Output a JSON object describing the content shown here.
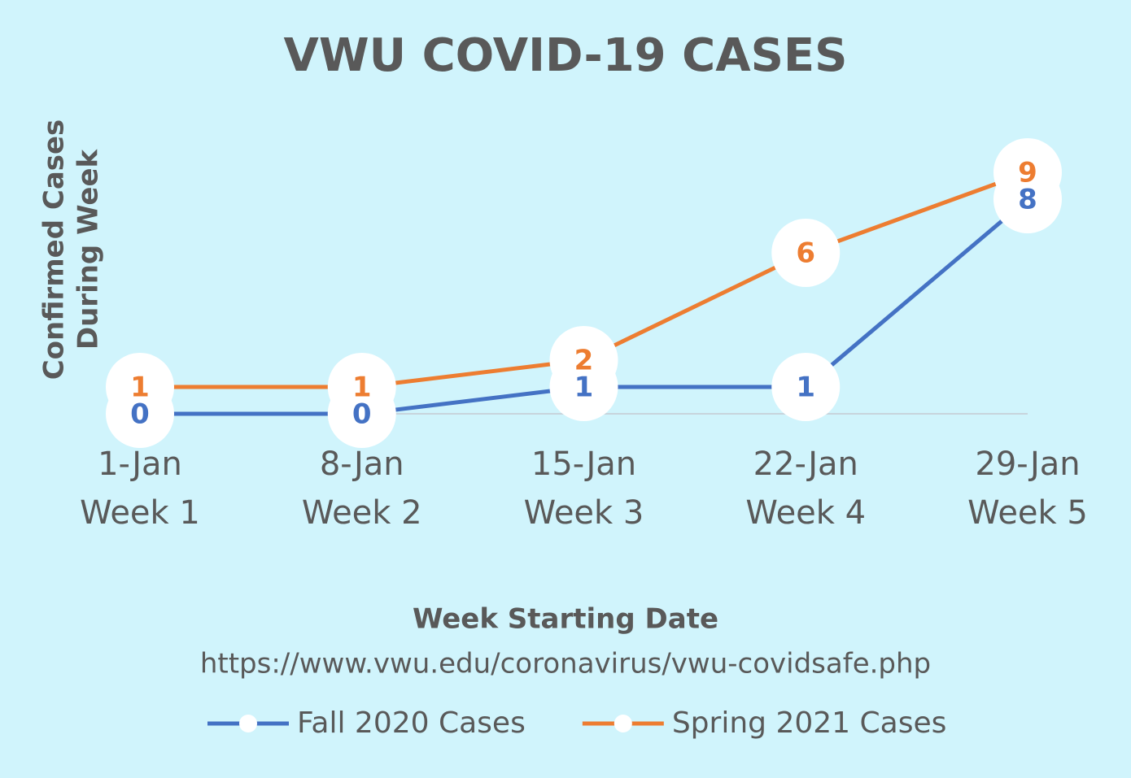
{
  "chart_data": {
    "type": "line",
    "title": "VWU COVID-19 CASES",
    "y_label": [
      "Confirmed Cases",
      "During Week"
    ],
    "x_label": "Week Starting Date",
    "source": "https://www.vwu.edu/coronavirus/vwu-covidsafe.php",
    "categories": [
      [
        "1-Jan",
        "Week 1"
      ],
      [
        "8-Jan",
        "Week 2"
      ],
      [
        "15-Jan",
        "Week 3"
      ],
      [
        "22-Jan",
        "Week 4"
      ],
      [
        "29-Jan",
        "Week 5"
      ]
    ],
    "series": [
      {
        "name": "Fall 2020 Cases",
        "color": "#4472c4",
        "values": [
          0,
          0,
          1,
          1,
          8
        ]
      },
      {
        "name": "Spring 2021 Cases",
        "color": "#ed7d31",
        "values": [
          1,
          1,
          2,
          6,
          9
        ]
      }
    ],
    "ylim": [
      0,
      10
    ],
    "legend": "bottom"
  }
}
